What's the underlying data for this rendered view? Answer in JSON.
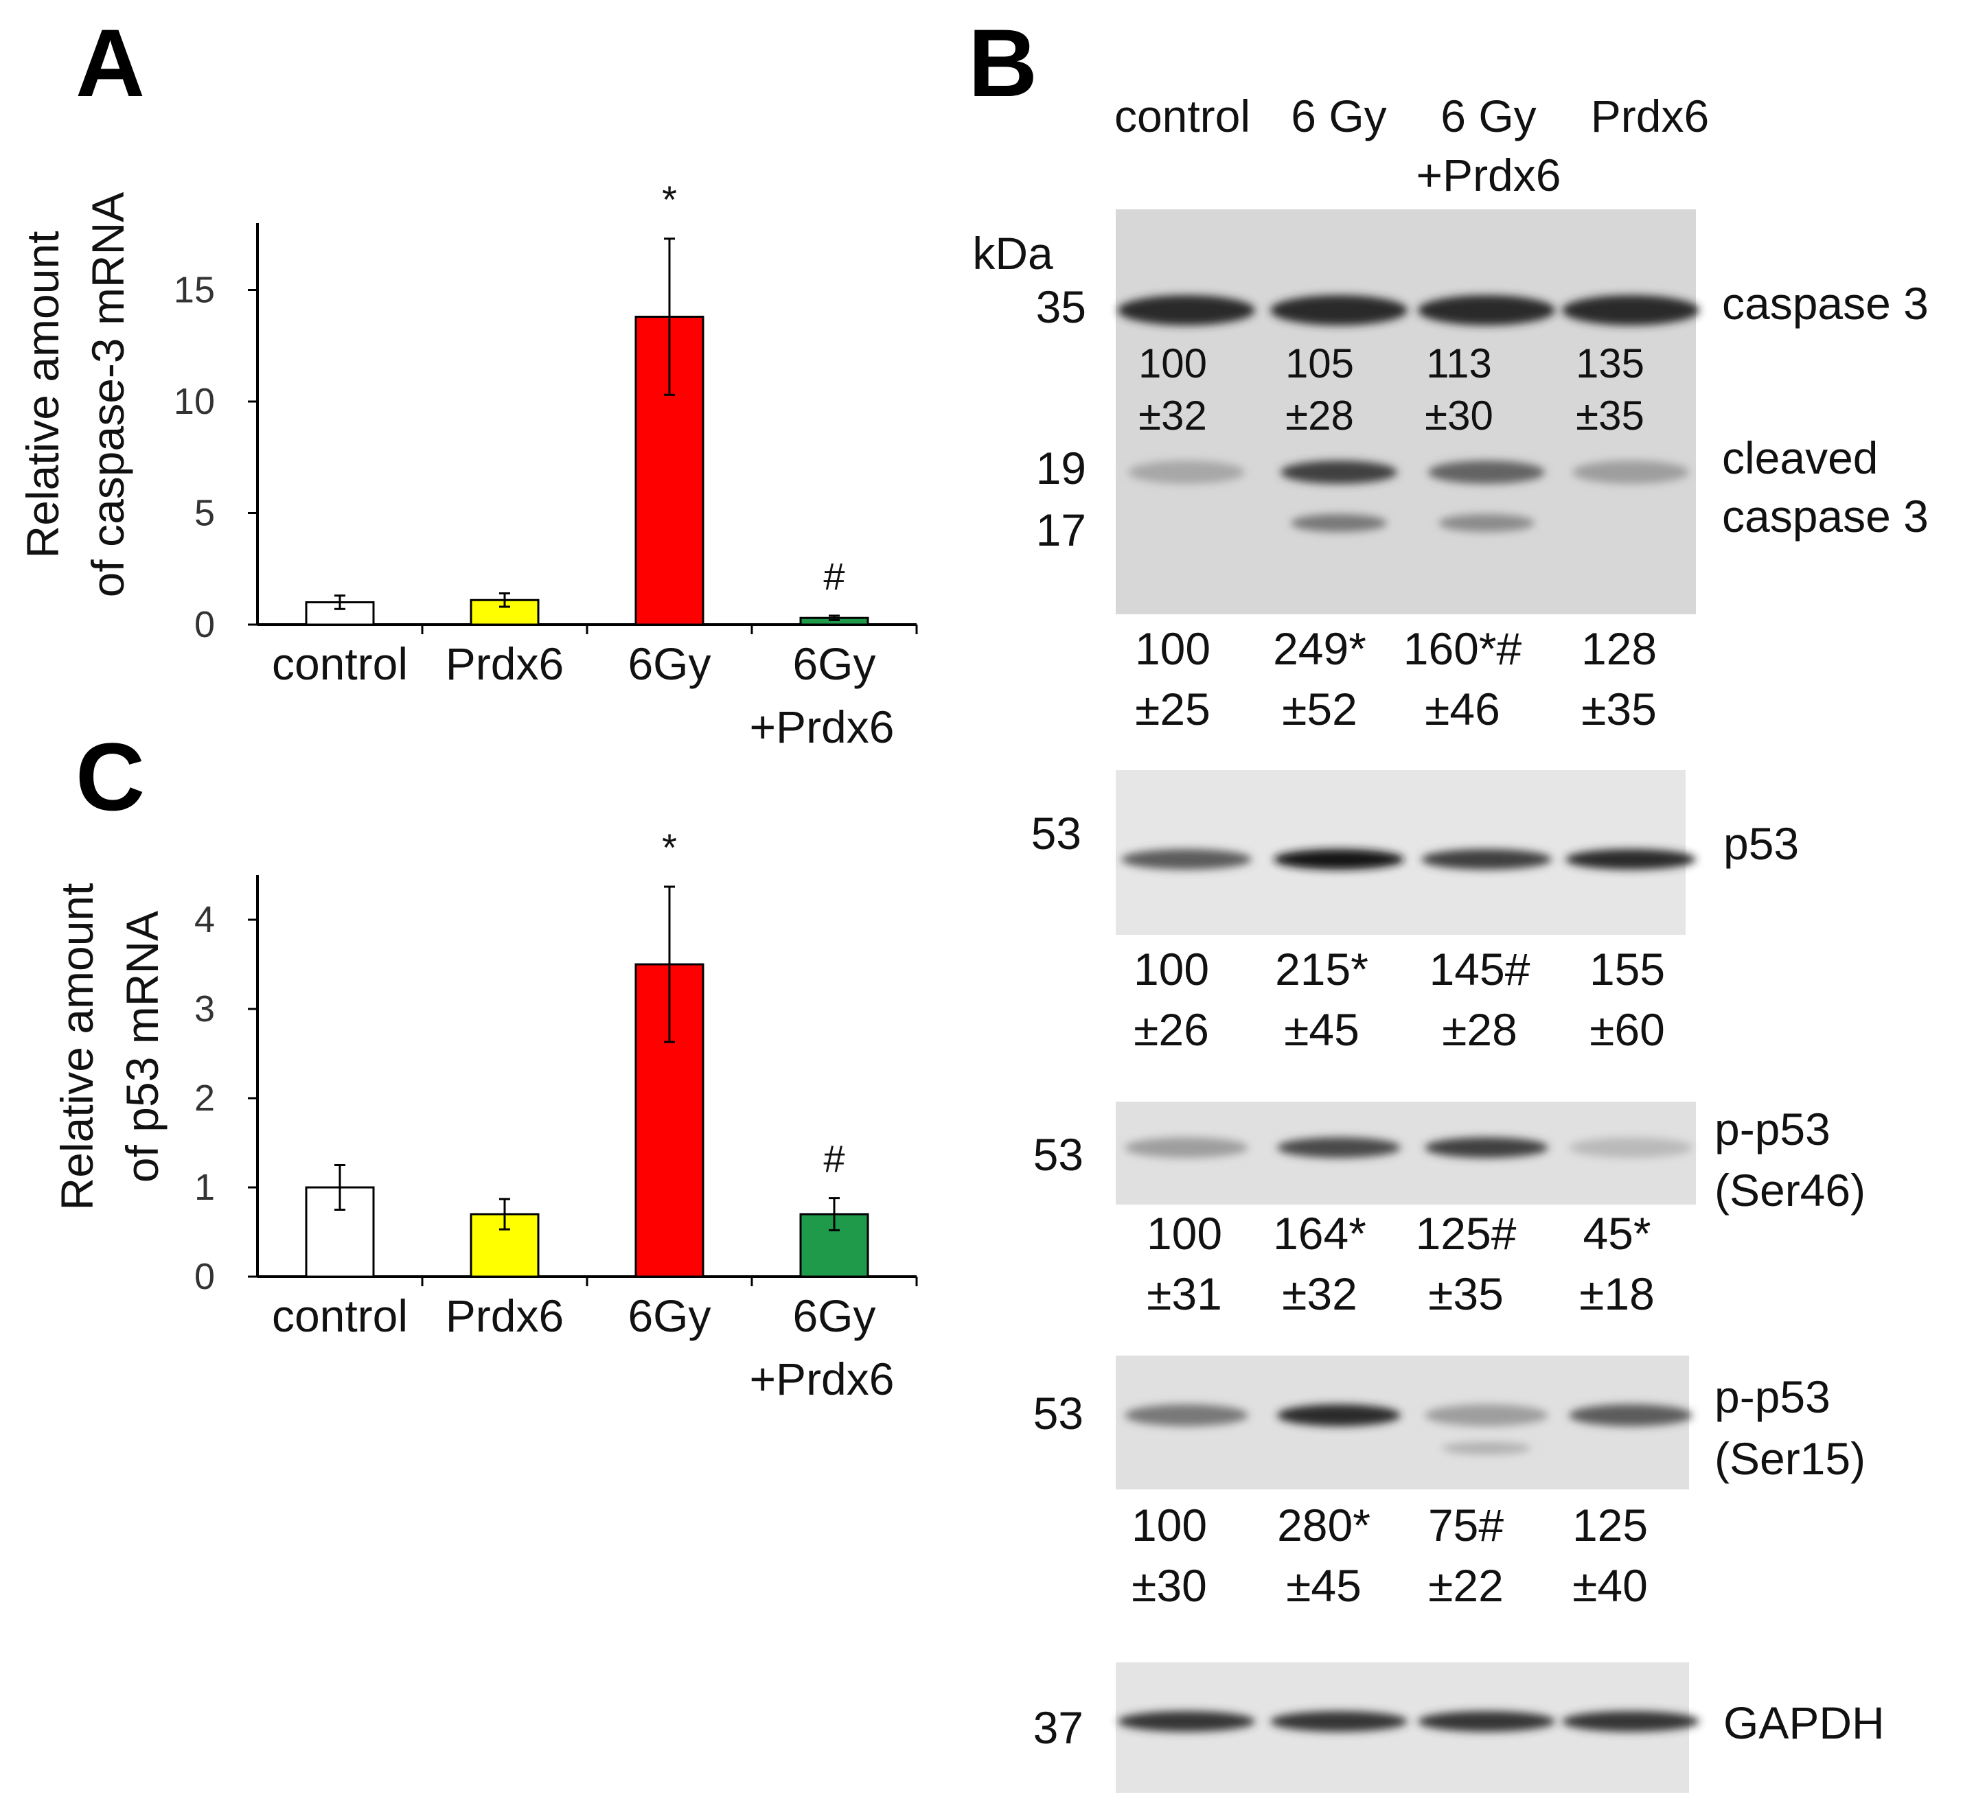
{
  "panels": {
    "a": "A",
    "b": "B",
    "c": "C"
  },
  "colors": {
    "control": "#ffffff",
    "prdx6": "#ffff00",
    "gy6": "#ff0000",
    "gy6_prdx6": "#1f9a4a",
    "axis": "#000000"
  },
  "chart_data": [
    {
      "type": "bar",
      "panel": "A",
      "categories": [
        "control",
        "Prdx6",
        "6Gy",
        "6Gy\n+Prdx6"
      ],
      "values": [
        1.0,
        1.1,
        13.8,
        0.3
      ],
      "errors": [
        0.3,
        0.3,
        3.5,
        0.1
      ],
      "significance": [
        "",
        "",
        "*",
        "#"
      ],
      "ylabel_lines": [
        "Relative amount",
        "of caspase-3 mRNA"
      ],
      "yticks": [
        0,
        5,
        10,
        15
      ],
      "ylim": [
        0,
        18
      ],
      "xlabel": ""
    },
    {
      "type": "bar",
      "panel": "C",
      "categories": [
        "control",
        "Prdx6",
        "6Gy",
        "6Gy\n+Prdx6"
      ],
      "values": [
        1.0,
        0.7,
        3.5,
        0.7
      ],
      "errors": [
        0.25,
        0.17,
        0.87,
        0.18
      ],
      "significance": [
        "",
        "",
        "*",
        "#"
      ],
      "ylabel_lines": [
        "Relative amount",
        "of p53 mRNA"
      ],
      "yticks": [
        0,
        1,
        2,
        3,
        4
      ],
      "ylim": [
        0,
        4.5
      ],
      "xlabel": ""
    }
  ],
  "western": {
    "lanes": [
      "control",
      "6 Gy",
      "6 Gy",
      "Prdx6"
    ],
    "lane_sub": "+Prdx6",
    "kda_label": "kDa",
    "blots": [
      {
        "id": "caspase",
        "kda": [
          "35",
          "19",
          "17"
        ],
        "labels": [
          "caspase 3",
          "cleaved",
          "caspase 3"
        ],
        "inner_quant": [
          [
            "100",
            "±32"
          ],
          [
            "105",
            "±28"
          ],
          [
            "113",
            "±30"
          ],
          [
            "135",
            "±35"
          ]
        ],
        "band_intensity": [
          0.85,
          0.85,
          0.85,
          0.85
        ],
        "cleaved_intensity": [
          0.2,
          0.75,
          0.55,
          0.25
        ],
        "quant": [
          [
            "100",
            "±25"
          ],
          [
            "249*",
            "±52"
          ],
          [
            "160*#",
            "±46"
          ],
          [
            "128",
            "±35"
          ]
        ]
      },
      {
        "id": "p53",
        "kda": [
          "53"
        ],
        "labels": [
          "p53"
        ],
        "band_intensity": [
          0.6,
          0.95,
          0.75,
          0.85
        ],
        "quant": [
          [
            "100",
            "±26"
          ],
          [
            "215*",
            "±45"
          ],
          [
            "145#",
            "±28"
          ],
          [
            "155",
            "±60"
          ]
        ]
      },
      {
        "id": "pp53-ser46",
        "kda": [
          "53"
        ],
        "labels": [
          "p-p53",
          "(Ser46)"
        ],
        "band_intensity": [
          0.25,
          0.7,
          0.75,
          0.1
        ],
        "quant": [
          [
            "100",
            "±31"
          ],
          [
            "164*",
            "±32"
          ],
          [
            "125#",
            "±35"
          ],
          [
            "45*",
            "±18"
          ]
        ]
      },
      {
        "id": "pp53-ser15",
        "kda": [
          "53"
        ],
        "labels": [
          "p-p53",
          "(Ser15)"
        ],
        "band_intensity": [
          0.45,
          0.85,
          0.25,
          0.6
        ],
        "quant": [
          [
            "100",
            "±30"
          ],
          [
            "280*",
            "±45"
          ],
          [
            "75#",
            "±22"
          ],
          [
            "125",
            "±40"
          ]
        ]
      },
      {
        "id": "gapdh",
        "kda": [
          "37"
        ],
        "labels": [
          "GAPDH"
        ],
        "band_intensity": [
          0.8,
          0.8,
          0.8,
          0.8
        ]
      }
    ]
  }
}
